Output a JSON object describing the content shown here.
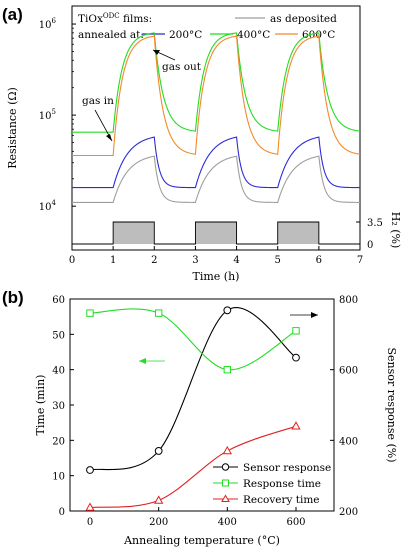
{
  "panel_a": {
    "label": "(a)",
    "legend_title": "TiOx",
    "legend_title_sup": "ODC",
    "legend_title_suffix": " films:",
    "legend_row2": "annealed at:",
    "legend_entries": [
      {
        "label": "as deposited",
        "color": "#9e9e9e"
      },
      {
        "label": "200°C",
        "color": "#2b2bd6"
      },
      {
        "label": "400°C",
        "color": "#22dd22"
      },
      {
        "label": "600°C",
        "color": "#f28a2a"
      }
    ],
    "annotation_gas_in": "gas in",
    "annotation_gas_out": "gas out",
    "ylabel": "Resistance (Ω)",
    "ylabel_right": "H₂ (%)",
    "xlabel": "Time (h)"
  },
  "panel_b": {
    "label": "(b)",
    "xlabel": "Annealing temperature (°C)",
    "ylabel_left": "Time (min)",
    "ylabel_right": "Sensor response (%)"
  },
  "chart_data": [
    {
      "type": "line",
      "title": "",
      "xlabel": "Time (h)",
      "ylabel": "Resistance (Ω)",
      "y_scale": "log",
      "xlim": [
        0,
        7
      ],
      "ylim": [
        8000,
        1500000
      ],
      "x_ticks": [
        0,
        1,
        2,
        3,
        4,
        5,
        6,
        7
      ],
      "y_ticks": [
        {
          "value": 10000,
          "label": "10",
          "exp": "4"
        },
        {
          "value": 100000,
          "label": "10",
          "exp": "5"
        },
        {
          "value": 1000000,
          "label": "10",
          "exp": "6"
        }
      ],
      "h2_axis": {
        "label": "H₂ (%)",
        "ticks": [
          0,
          3.5
        ],
        "pulses": [
          [
            1,
            2
          ],
          [
            3,
            4
          ],
          [
            5,
            6
          ]
        ]
      },
      "series": [
        {
          "name": "as deposited",
          "color": "#9e9e9e",
          "base": 11000,
          "peak": 38000
        },
        {
          "name": "200°C",
          "color": "#2b2bd6",
          "base": 16000,
          "peak": 62000
        },
        {
          "name": "400°C",
          "color": "#22dd22",
          "base": 65000,
          "peak": 820000
        },
        {
          "name": "600°C",
          "color": "#f28a2a",
          "base": 36000,
          "peak": 760000
        }
      ]
    },
    {
      "type": "line",
      "title": "",
      "xlabel": "Annealing temperature (°C)",
      "ylabel": "Time (min)",
      "ylabel_right": "Sensor response (%)",
      "categories": [
        0,
        200,
        400,
        600
      ],
      "x_ticks": [
        0,
        200,
        400,
        600
      ],
      "ylim": [
        0,
        60
      ],
      "y_ticks": [
        0,
        10,
        20,
        30,
        40,
        50,
        60
      ],
      "ylim_right": [
        200,
        800
      ],
      "y_ticks_right": [
        200,
        400,
        600,
        800
      ],
      "legend_position": "bottom-right",
      "series": [
        {
          "name": "Sensor response",
          "axis": "right",
          "color": "#000000",
          "marker": "circle",
          "values": [
            316,
            370,
            768,
            634
          ]
        },
        {
          "name": "Response time",
          "axis": "left",
          "color": "#22dd22",
          "marker": "square",
          "values": [
            56,
            56,
            40,
            51
          ]
        },
        {
          "name": "Recovery time",
          "axis": "left",
          "color": "#e02020",
          "marker": "triangle",
          "values": [
            1,
            3,
            17,
            24
          ]
        }
      ]
    }
  ]
}
